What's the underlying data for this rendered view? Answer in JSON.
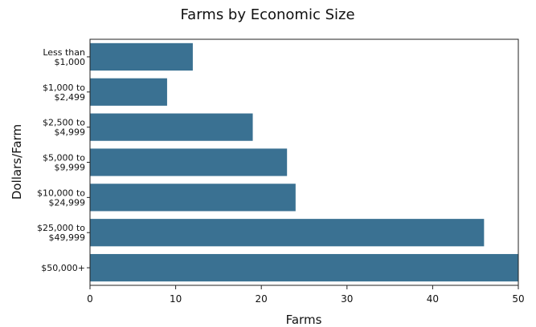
{
  "chart_data": {
    "type": "bar",
    "orientation": "horizontal",
    "title": "Farms by Economic Size",
    "xlabel": "Farms",
    "ylabel": "Dollars/Farm",
    "categories": [
      [
        "Less than",
        "$1,000"
      ],
      [
        "$1,000 to",
        "$2,499"
      ],
      [
        "$2,500 to",
        "$4,999"
      ],
      [
        "$5,000 to",
        "$9,999"
      ],
      [
        "$10,000 to",
        "$24,999"
      ],
      [
        "$25,000 to",
        "$49,999"
      ],
      [
        "$50,000+"
      ]
    ],
    "values": [
      12,
      9,
      19,
      23,
      24,
      46,
      50
    ],
    "xlim": [
      0,
      50
    ],
    "xticks": [
      0,
      10,
      20,
      30,
      40,
      50
    ],
    "grid": false,
    "bar_color": "#3a7192",
    "frame_color": "#222222"
  }
}
